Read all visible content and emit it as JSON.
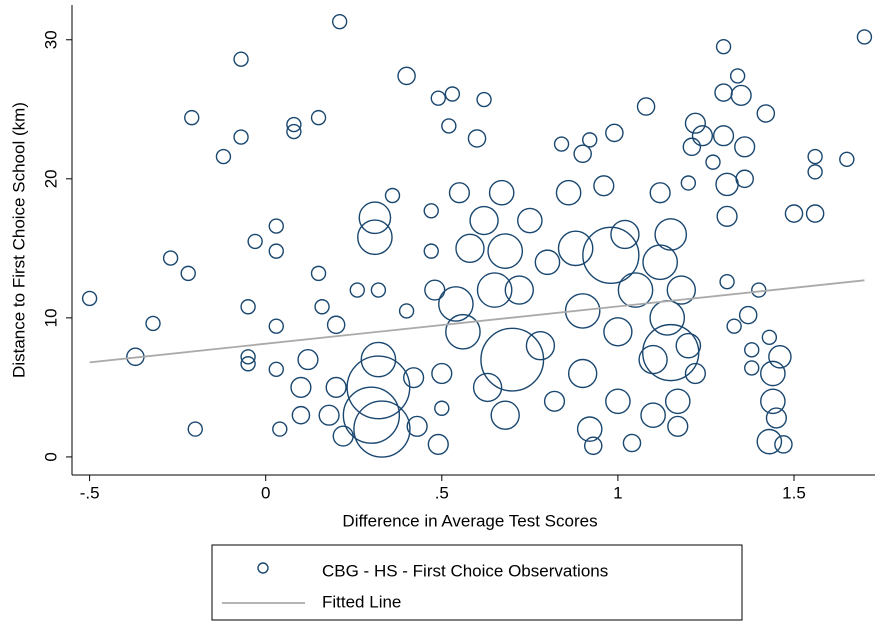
{
  "chart_data": {
    "type": "scatter",
    "x_label": "Difference in Average Test Scores",
    "y_label": "Distance to First Choice School (km)",
    "xlim": [
      -0.55,
      1.73
    ],
    "ylim": [
      -1.3,
      32.5
    ],
    "xticks": [
      {
        "value": -0.5,
        "label": "-.5"
      },
      0,
      {
        "value": 0.5,
        "label": ".5"
      },
      1,
      1.5
    ],
    "yticks": [
      0,
      10,
      20,
      30
    ],
    "legend": "bottom",
    "series": [
      {
        "name": "CBG - HS - First Choice Observations",
        "color": "#1a476f",
        "x": [
          -0.5,
          -0.37,
          -0.32,
          -0.27,
          -0.22,
          -0.21,
          -0.2,
          -0.12,
          -0.07,
          -0.07,
          -0.05,
          -0.05,
          -0.05,
          -0.03,
          0.03,
          0.03,
          0.03,
          0.03,
          0.04,
          0.08,
          0.08,
          0.1,
          0.1,
          0.12,
          0.15,
          0.15,
          0.16,
          0.18,
          0.2,
          0.2,
          0.21,
          0.22,
          0.26,
          0.31,
          0.31,
          0.32,
          0.3,
          0.32,
          0.32,
          0.33,
          0.36,
          0.4,
          0.4,
          0.42,
          0.43,
          0.47,
          0.47,
          0.48,
          0.5,
          0.5,
          0.49,
          0.49,
          0.52,
          0.53,
          0.55,
          0.54,
          0.56,
          0.58,
          0.6,
          0.62,
          0.62,
          0.65,
          0.63,
          0.67,
          0.68,
          0.7,
          0.68,
          0.72,
          0.75,
          0.78,
          0.8,
          0.82,
          0.84,
          0.86,
          0.88,
          0.9,
          0.9,
          0.92,
          0.9,
          0.92,
          0.93,
          0.96,
          0.98,
          0.99,
          1.0,
          1.0,
          1.02,
          1.05,
          1.04,
          1.08,
          1.1,
          1.1,
          1.12,
          1.12,
          1.14,
          1.15,
          1.15,
          1.17,
          1.17,
          1.18,
          1.2,
          1.21,
          1.22,
          1.24,
          1.22,
          1.2,
          1.27,
          1.3,
          1.3,
          1.3,
          1.31,
          1.31,
          1.31,
          1.33,
          1.34,
          1.35,
          1.36,
          1.36,
          1.37,
          1.38,
          1.38,
          1.4,
          1.42,
          1.43,
          1.44,
          1.44,
          1.43,
          1.45,
          1.46,
          1.47,
          1.5,
          1.56,
          1.56,
          1.56,
          1.65,
          1.7
        ],
        "y": [
          11.4,
          7.2,
          9.6,
          14.3,
          13.2,
          24.4,
          2,
          21.6,
          28.6,
          23,
          10.8,
          7.2,
          6.7,
          15.5,
          16.6,
          14.8,
          9.4,
          6.3,
          2,
          23.9,
          23.4,
          3,
          5,
          7,
          24.4,
          13.2,
          10.8,
          3,
          5,
          9.5,
          31.3,
          1.5,
          12,
          17.2,
          15.8,
          5,
          3,
          7,
          12,
          2,
          18.8,
          27.4,
          10.5,
          5.7,
          2.2,
          17.7,
          14.8,
          12,
          6,
          3.5,
          0.9,
          25.8,
          23.8,
          26.1,
          19,
          11,
          9,
          15,
          22.9,
          25.7,
          17,
          12,
          5,
          19,
          14.8,
          7,
          3,
          12,
          17,
          8,
          14,
          4,
          22.5,
          19,
          15,
          10.5,
          6,
          2,
          21.8,
          22.8,
          0.8,
          19.5,
          14.5,
          23.3,
          9,
          4,
          16,
          12,
          1,
          25.2,
          7,
          3,
          14,
          19,
          10,
          7.5,
          16,
          4,
          2.2,
          12,
          19.7,
          22.3,
          24,
          23.1,
          6,
          8,
          21.2,
          29.5,
          26.2,
          23.1,
          19.6,
          17.3,
          12.6,
          9.4,
          27.4,
          26,
          22.3,
          20,
          10.2,
          7.7,
          6.4,
          12,
          24.7,
          8.6,
          6,
          4,
          1.1,
          2.8,
          7.2,
          0.9,
          17.5,
          17.5,
          21.6,
          20.5,
          21.4,
          30.2
        ],
        "size": [
          1,
          1.5,
          1,
          1,
          1,
          1,
          1,
          1,
          1,
          1,
          1,
          1,
          1,
          1,
          1,
          1,
          1,
          1,
          1,
          1,
          1,
          1.5,
          2,
          2,
          1,
          1,
          1,
          2,
          2,
          1.5,
          1,
          2,
          1,
          5,
          6,
          20,
          16,
          6,
          1,
          16,
          1,
          1.5,
          1,
          2,
          2,
          1,
          1,
          2,
          2,
          1,
          2,
          1,
          1,
          1,
          2,
          6,
          6,
          4,
          1.5,
          1,
          4,
          6,
          4,
          3,
          6,
          20,
          4,
          4,
          3,
          4,
          3,
          2,
          1,
          3,
          6,
          6,
          4,
          3,
          1.5,
          1,
          1.5,
          2,
          16,
          1.5,
          4,
          3,
          4,
          6,
          1.5,
          1.5,
          4,
          3,
          6,
          2,
          6,
          16,
          5,
          3,
          2,
          4,
          1,
          1.5,
          2,
          2,
          2,
          3,
          1,
          1,
          1.5,
          2,
          2.5,
          2,
          1,
          1,
          1,
          2,
          2,
          1.5,
          1.5,
          1,
          1,
          1,
          1.5,
          1,
          3,
          3,
          3,
          2,
          2.5,
          1.5,
          1.5,
          1.5,
          1,
          1,
          1,
          1
        ]
      },
      {
        "name": "Fitted Line",
        "color": "#aaaaaa",
        "type": "line",
        "x": [
          -0.5,
          1.7
        ],
        "y": [
          6.8,
          12.7
        ]
      }
    ]
  }
}
